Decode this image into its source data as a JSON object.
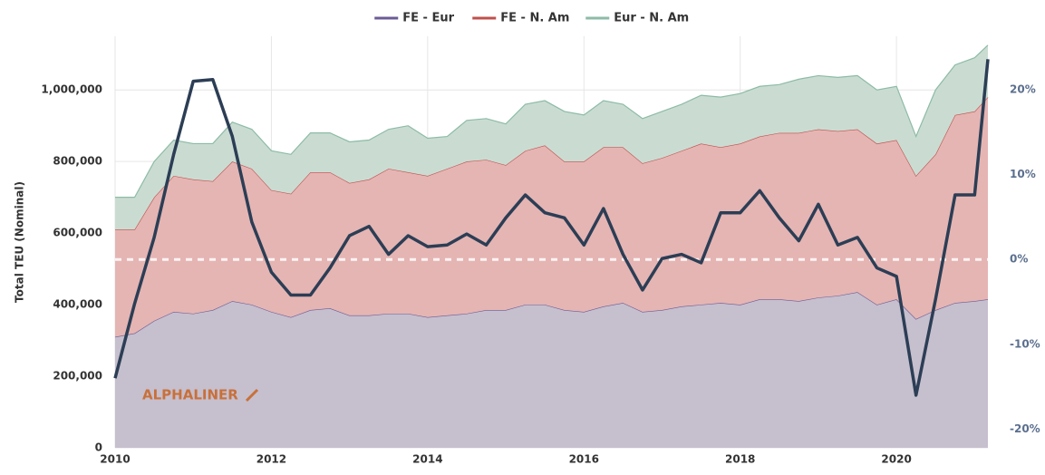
{
  "chart_data": {
    "type": "area",
    "stacked": true,
    "y_label": "Total TEU (Nominal)",
    "watermark": "ALPHALINER",
    "x": [
      2010,
      2010.25,
      2010.5,
      2010.75,
      2011,
      2011.25,
      2011.5,
      2011.75,
      2012,
      2012.25,
      2012.5,
      2012.75,
      2013,
      2013.25,
      2013.5,
      2013.75,
      2014,
      2014.25,
      2014.5,
      2014.75,
      2015,
      2015.25,
      2015.5,
      2015.75,
      2016,
      2016.25,
      2016.5,
      2016.75,
      2017,
      2017.25,
      2017.5,
      2017.75,
      2018,
      2018.25,
      2018.5,
      2018.75,
      2019,
      2019.25,
      2019.5,
      2019.75,
      2020,
      2020.25,
      2020.5,
      2020.75,
      2021,
      2021.17
    ],
    "xlim": [
      2010,
      2021.17
    ],
    "xticks": [
      2010,
      2012,
      2014,
      2016,
      2018,
      2020
    ],
    "ylim": [
      0,
      1150000
    ],
    "yticks": [
      0,
      {
        "value": 200000,
        "label": "200,000"
      },
      {
        "value": 400000,
        "label": "400,000"
      },
      {
        "value": 600000,
        "label": "600,000"
      },
      {
        "value": 800000,
        "label": "800,000"
      },
      {
        "value": 1000000,
        "label": "1,000,000"
      }
    ],
    "y2lim": [
      -22.2,
      26.3
    ],
    "y2ticks": [
      {
        "value": -20,
        "label": "-20%"
      },
      {
        "value": -10,
        "label": "-10%"
      },
      {
        "value": 0,
        "label": "0%"
      },
      {
        "value": 10,
        "label": "10%"
      },
      {
        "value": 20,
        "label": "20%"
      }
    ],
    "grid": true,
    "legend": "top",
    "series": [
      {
        "name": "FE - Eur",
        "color": "#6b5b95",
        "fill": "#c6bfce",
        "values": [
          310000,
          320000,
          355000,
          380000,
          375000,
          385000,
          410000,
          400000,
          380000,
          365000,
          385000,
          390000,
          370000,
          370000,
          375000,
          375000,
          365000,
          370000,
          375000,
          385000,
          385000,
          400000,
          400000,
          385000,
          380000,
          395000,
          405000,
          380000,
          385000,
          395000,
          400000,
          405000,
          400000,
          415000,
          415000,
          410000,
          420000,
          425000,
          435000,
          400000,
          415000,
          360000,
          385000,
          405000,
          410000,
          415000
        ]
      },
      {
        "name": "FE - N. Am",
        "color": "#c0504d",
        "fill": "#e5b5b3",
        "values": [
          300000,
          290000,
          345000,
          380000,
          375000,
          360000,
          390000,
          380000,
          340000,
          345000,
          385000,
          380000,
          370000,
          380000,
          405000,
          395000,
          395000,
          410000,
          425000,
          420000,
          405000,
          430000,
          445000,
          415000,
          420000,
          445000,
          435000,
          415000,
          425000,
          435000,
          450000,
          435000,
          450000,
          455000,
          465000,
          470000,
          470000,
          460000,
          455000,
          450000,
          445000,
          400000,
          435000,
          525000,
          530000,
          565000
        ]
      },
      {
        "name": "Eur - N. Am",
        "color": "#8dbba6",
        "fill": "#cadcd2",
        "values": [
          90000,
          90000,
          100000,
          100000,
          100000,
          105000,
          110000,
          110000,
          110000,
          110000,
          110000,
          110000,
          115000,
          110000,
          110000,
          130000,
          105000,
          90000,
          115000,
          115000,
          115000,
          130000,
          125000,
          140000,
          130000,
          130000,
          120000,
          125000,
          130000,
          130000,
          135000,
          140000,
          140000,
          140000,
          135000,
          150000,
          150000,
          150000,
          150000,
          150000,
          150000,
          110000,
          180000,
          140000,
          150000,
          145000
        ]
      },
      {
        "type": "line",
        "axis": "y2",
        "color": "#2c3e55",
        "values": [
          -14,
          -5.2,
          2.6,
          12.4,
          21,
          21.2,
          14.5,
          4.4,
          -1.5,
          -4.2,
          -4.2,
          -1,
          2.8,
          3.9,
          0.6,
          2.8,
          1.5,
          1.7,
          3,
          1.7,
          4.9,
          7.6,
          5.5,
          4.9,
          1.7,
          6,
          0.6,
          -3.6,
          0.1,
          0.6,
          -0.4,
          5.5,
          5.5,
          8.1,
          4.9,
          2.2,
          6.5,
          1.7,
          2.6,
          -1,
          -2,
          -16,
          -4.7,
          7.6,
          7.6,
          23.6
        ]
      }
    ]
  }
}
